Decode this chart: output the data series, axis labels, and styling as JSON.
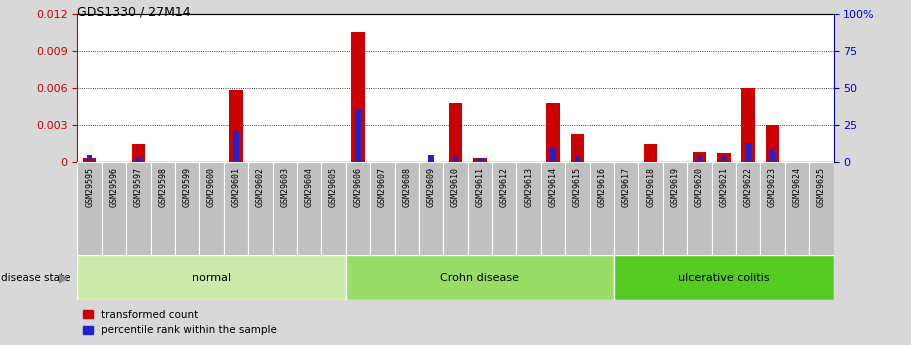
{
  "title": "GDS1330 / 27M14",
  "samples": [
    "GSM29595",
    "GSM29596",
    "GSM29597",
    "GSM29598",
    "GSM29599",
    "GSM29600",
    "GSM29601",
    "GSM29602",
    "GSM29603",
    "GSM29604",
    "GSM29605",
    "GSM29606",
    "GSM29607",
    "GSM29608",
    "GSM29609",
    "GSM29610",
    "GSM29611",
    "GSM29612",
    "GSM29613",
    "GSM29614",
    "GSM29615",
    "GSM29616",
    "GSM29617",
    "GSM29618",
    "GSM29619",
    "GSM29620",
    "GSM29621",
    "GSM29622",
    "GSM29623",
    "GSM29624",
    "GSM29625"
  ],
  "transformed_count": [
    0.0003,
    0.0,
    0.0015,
    0.0,
    0.0,
    0.0,
    0.0058,
    0.0,
    0.0,
    0.0,
    0.0,
    0.0105,
    0.0,
    0.0,
    0.0,
    0.0048,
    0.0003,
    0.0,
    0.0,
    0.0048,
    0.0023,
    0.0,
    0.0,
    0.0015,
    0.0,
    0.0008,
    0.0007,
    0.006,
    0.003,
    0.0,
    0.0
  ],
  "percentile_rank": [
    5,
    0,
    3,
    0,
    0,
    0,
    21,
    0,
    0,
    0,
    0,
    35,
    0,
    0,
    5,
    5,
    3,
    0,
    0,
    10,
    5,
    0,
    0,
    0,
    0,
    5,
    5,
    13,
    8,
    0,
    0
  ],
  "groups": [
    {
      "label": "normal",
      "start": 0,
      "end": 10,
      "color": "#cceaaa"
    },
    {
      "label": "Crohn disease",
      "start": 11,
      "end": 21,
      "color": "#99dd66"
    },
    {
      "label": "ulcerative colitis",
      "start": 22,
      "end": 30,
      "color": "#55cc22"
    }
  ],
  "ylim_left": [
    0,
    0.012
  ],
  "ylim_right": [
    0,
    100
  ],
  "yticks_left": [
    0,
    0.003,
    0.006,
    0.009,
    0.012
  ],
  "yticks_right": [
    0,
    25,
    50,
    75,
    100
  ],
  "bar_color_red": "#cc0000",
  "bar_color_blue": "#2222cc",
  "bg_color": "#d8d8d8",
  "plot_bg": "#ffffff",
  "left_axis_color": "#cc0000",
  "right_axis_color": "#0000cc",
  "cell_color_odd": "#c8c8c8",
  "cell_color_even": "#b8b8b8"
}
